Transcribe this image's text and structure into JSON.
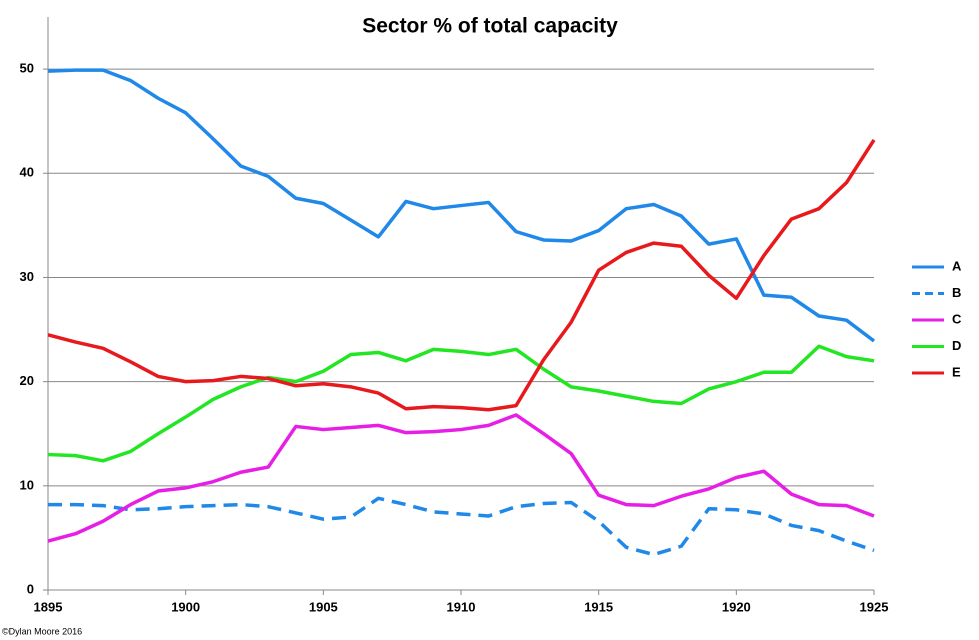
{
  "chart_data": {
    "type": "line",
    "title": "Sector % of total capacity",
    "x": [
      1895,
      1896,
      1897,
      1898,
      1899,
      1900,
      1901,
      1902,
      1903,
      1904,
      1905,
      1906,
      1907,
      1908,
      1909,
      1910,
      1911,
      1912,
      1913,
      1914,
      1915,
      1916,
      1917,
      1918,
      1919,
      1920,
      1921,
      1922,
      1923,
      1924,
      1925
    ],
    "series": [
      {
        "name": "A",
        "color": "#1f88e8",
        "dashed": false,
        "values": [
          49.8,
          49.9,
          49.9,
          48.9,
          47.2,
          45.8,
          43.3,
          40.7,
          39.7,
          37.6,
          37.1,
          35.5,
          33.9,
          37.3,
          36.6,
          36.9,
          37.2,
          34.4,
          33.6,
          33.5,
          34.5,
          36.6,
          37.0,
          35.9,
          33.2,
          33.7,
          28.3,
          28.1,
          26.3,
          25.9,
          23.9
        ]
      },
      {
        "name": "B",
        "color": "#1f88e8",
        "dashed": true,
        "values": [
          8.2,
          8.2,
          8.1,
          7.7,
          7.8,
          8.0,
          8.1,
          8.2,
          8.0,
          7.4,
          6.8,
          7.0,
          8.8,
          8.2,
          7.5,
          7.3,
          7.1,
          8.0,
          8.3,
          8.4,
          6.6,
          4.1,
          3.4,
          4.2,
          7.8,
          7.7,
          7.3,
          6.2,
          5.7,
          4.7,
          3.8
        ]
      },
      {
        "name": "C",
        "color": "#e61ee6",
        "dashed": false,
        "values": [
          4.7,
          5.4,
          6.6,
          8.2,
          9.5,
          9.8,
          10.4,
          11.3,
          11.8,
          15.7,
          15.4,
          15.6,
          15.8,
          15.1,
          15.2,
          15.4,
          15.8,
          16.8,
          15.0,
          13.1,
          9.1,
          8.2,
          8.1,
          9.0,
          9.7,
          10.8,
          11.4,
          9.2,
          8.2,
          8.1,
          7.1
        ]
      },
      {
        "name": "D",
        "color": "#22e622",
        "dashed": false,
        "values": [
          13.0,
          12.9,
          12.4,
          13.3,
          15.0,
          16.6,
          18.3,
          19.5,
          20.4,
          20.0,
          21.0,
          22.6,
          22.8,
          22.0,
          23.1,
          22.9,
          22.6,
          23.1,
          21.2,
          19.5,
          19.1,
          18.6,
          18.1,
          17.9,
          19.3,
          20.0,
          20.9,
          20.9,
          23.4,
          22.4,
          22.0
        ]
      },
      {
        "name": "E",
        "color": "#e8191c",
        "dashed": false,
        "values": [
          24.5,
          23.8,
          23.2,
          21.9,
          20.5,
          20.0,
          20.1,
          20.5,
          20.3,
          19.6,
          19.8,
          19.5,
          18.9,
          17.4,
          17.6,
          17.5,
          17.3,
          17.7,
          22.1,
          25.7,
          30.7,
          32.4,
          33.3,
          33.0,
          30.2,
          28.0,
          32.1,
          35.6,
          36.6,
          39.1,
          43.2
        ]
      }
    ],
    "xlim": [
      1895,
      1925
    ],
    "xticks": [
      1895,
      1900,
      1905,
      1910,
      1915,
      1920,
      1925
    ],
    "ylim": [
      0,
      55
    ],
    "yticks": [
      0,
      10,
      20,
      30,
      40,
      50
    ],
    "grid": true,
    "legend": "right",
    "note": "©Dylan Moore 2016"
  }
}
